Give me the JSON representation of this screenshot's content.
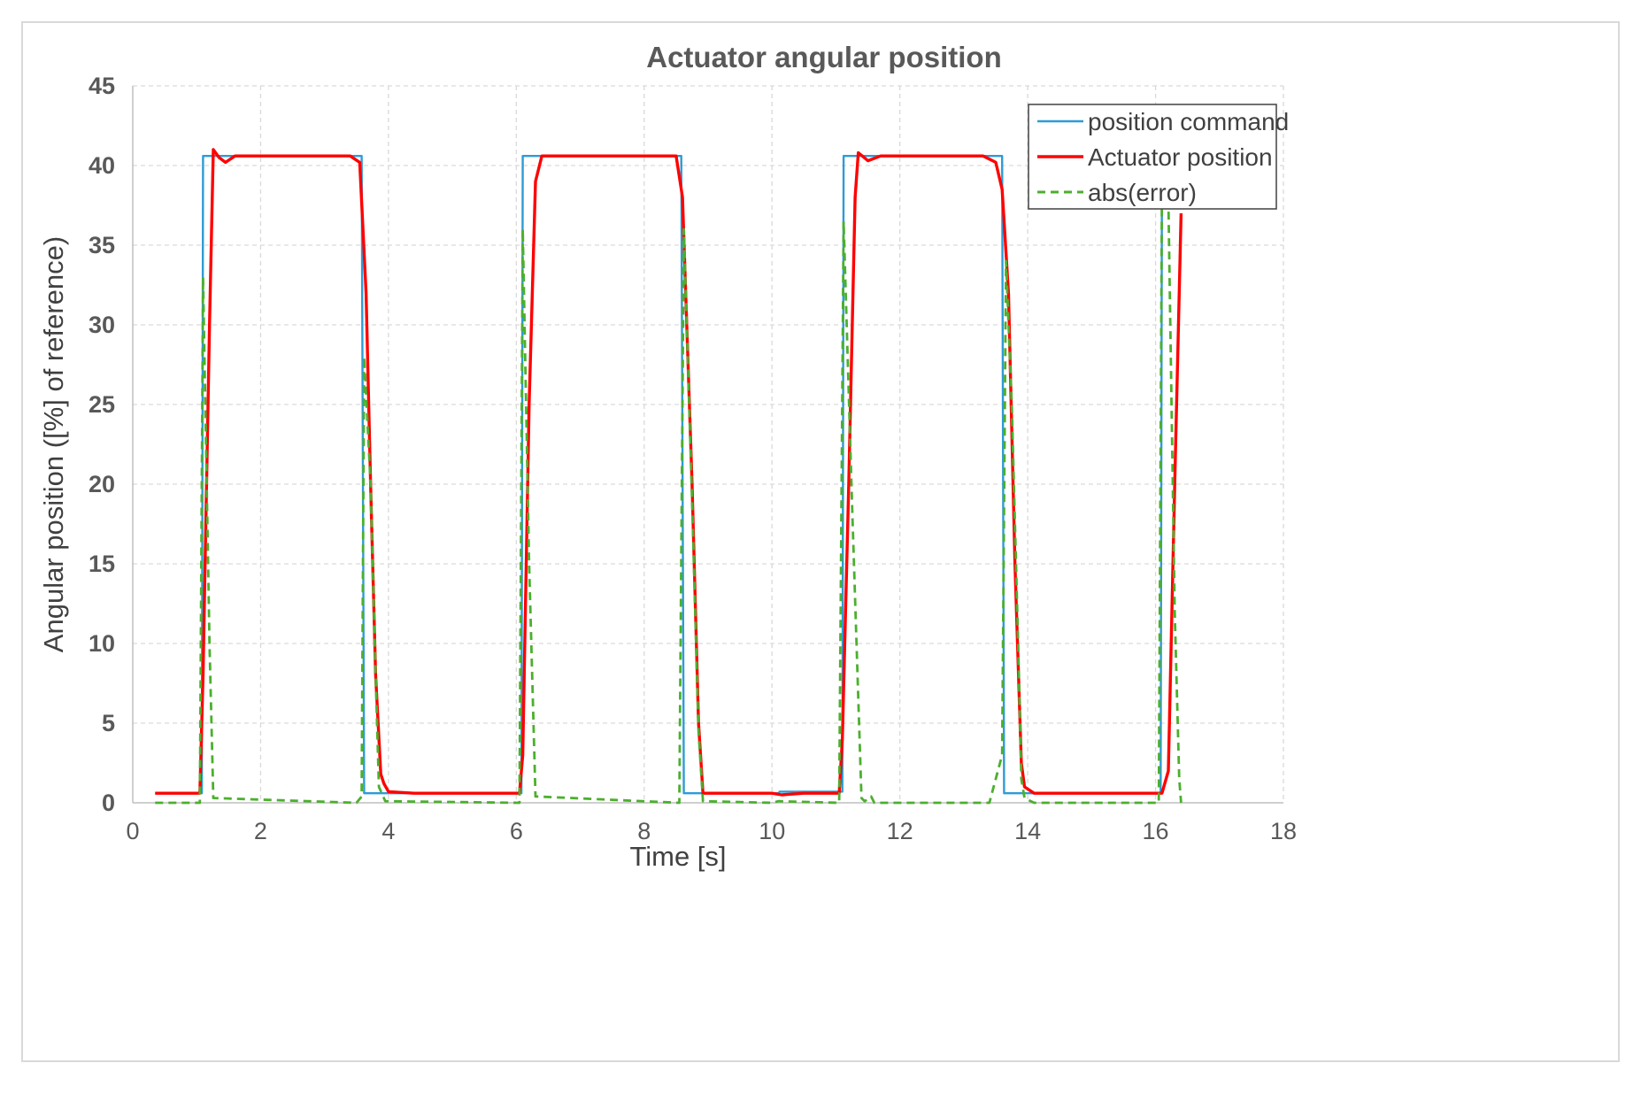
{
  "chart_data": {
    "type": "line",
    "title": "Actuator angular position",
    "xlabel": "Time [s]",
    "ylabel": "Angular position ([%] of reference)",
    "xlim": [
      0,
      18
    ],
    "ylim": [
      0,
      45
    ],
    "x_ticks": [
      "0",
      "2",
      "4",
      "6",
      "8",
      "10",
      "12",
      "14",
      "16",
      "18"
    ],
    "y_ticks": [
      "0",
      "5",
      "10",
      "15",
      "20",
      "25",
      "30",
      "35",
      "40",
      "45"
    ],
    "grid": true,
    "legend_position": "top-right",
    "series": [
      {
        "name": "position command",
        "color": "#2e9bd6",
        "style": "solid",
        "points": [
          [
            0.35,
            0.6
          ],
          [
            1.08,
            0.6
          ],
          [
            1.1,
            40.6
          ],
          [
            3.58,
            40.6
          ],
          [
            3.62,
            0.6
          ],
          [
            4.8,
            0.6
          ],
          [
            6.08,
            0.6
          ],
          [
            6.1,
            40.6
          ],
          [
            8.58,
            40.6
          ],
          [
            8.62,
            0.6
          ],
          [
            9.1,
            0.6
          ],
          [
            10.1,
            0.6
          ],
          [
            10.12,
            0.7
          ],
          [
            11.1,
            0.7
          ],
          [
            11.12,
            40.6
          ],
          [
            13.6,
            40.6
          ],
          [
            13.63,
            0.6
          ],
          [
            16.08,
            0.6
          ],
          [
            16.1,
            40.6
          ],
          [
            16.4,
            40.6
          ]
        ]
      },
      {
        "name": "Actuator position",
        "color": "#ff0000",
        "style": "solid",
        "points": [
          [
            0.35,
            0.6
          ],
          [
            1.05,
            0.6
          ],
          [
            1.1,
            8
          ],
          [
            1.2,
            30
          ],
          [
            1.26,
            41
          ],
          [
            1.35,
            40.5
          ],
          [
            1.45,
            40.2
          ],
          [
            1.6,
            40.6
          ],
          [
            2.5,
            40.6
          ],
          [
            3.4,
            40.6
          ],
          [
            3.55,
            40.2
          ],
          [
            3.65,
            32
          ],
          [
            3.72,
            20
          ],
          [
            3.8,
            8
          ],
          [
            3.88,
            1.8
          ],
          [
            3.93,
            1.2
          ],
          [
            4.0,
            0.7
          ],
          [
            4.4,
            0.6
          ],
          [
            6.05,
            0.6
          ],
          [
            6.1,
            3
          ],
          [
            6.2,
            25
          ],
          [
            6.3,
            39
          ],
          [
            6.4,
            40.6
          ],
          [
            8.5,
            40.6
          ],
          [
            8.6,
            38
          ],
          [
            8.75,
            20
          ],
          [
            8.85,
            5
          ],
          [
            8.92,
            0.6
          ],
          [
            10.0,
            0.6
          ],
          [
            10.15,
            0.5
          ],
          [
            10.5,
            0.6
          ],
          [
            11.05,
            0.6
          ],
          [
            11.1,
            4
          ],
          [
            11.2,
            20
          ],
          [
            11.3,
            38
          ],
          [
            11.35,
            40.8
          ],
          [
            11.5,
            40.3
          ],
          [
            11.7,
            40.6
          ],
          [
            12.5,
            40.6
          ],
          [
            13.3,
            40.6
          ],
          [
            13.5,
            40.2
          ],
          [
            13.6,
            38.5
          ],
          [
            13.7,
            32
          ],
          [
            13.8,
            15
          ],
          [
            13.9,
            2.5
          ],
          [
            13.95,
            1.0
          ],
          [
            14.1,
            0.6
          ],
          [
            16.05,
            0.6
          ],
          [
            16.1,
            0.6
          ],
          [
            16.2,
            2
          ],
          [
            16.3,
            20
          ],
          [
            16.4,
            37
          ]
        ]
      },
      {
        "name": "abs(error)",
        "color": "#4caf2e",
        "style": "dashed",
        "points": [
          [
            0.35,
            0.0
          ],
          [
            1.05,
            0.0
          ],
          [
            1.1,
            33
          ],
          [
            1.2,
            10
          ],
          [
            1.26,
            0.3
          ],
          [
            3.5,
            0.0
          ],
          [
            3.58,
            0.4
          ],
          [
            3.62,
            28
          ],
          [
            3.72,
            20
          ],
          [
            3.8,
            8
          ],
          [
            3.85,
            1.0
          ],
          [
            3.95,
            0.1
          ],
          [
            6.05,
            0.0
          ],
          [
            6.1,
            36
          ],
          [
            6.2,
            15
          ],
          [
            6.3,
            0.4
          ],
          [
            8.55,
            0.0
          ],
          [
            8.62,
            36
          ],
          [
            8.75,
            19
          ],
          [
            8.85,
            4.5
          ],
          [
            8.92,
            0.1
          ],
          [
            10.0,
            0.0
          ],
          [
            10.1,
            0.1
          ],
          [
            11.05,
            0.0
          ],
          [
            11.12,
            36.5
          ],
          [
            11.25,
            19
          ],
          [
            11.4,
            0.3
          ],
          [
            11.45,
            0.1
          ],
          [
            11.55,
            0.4
          ],
          [
            11.6,
            0.0
          ],
          [
            13.4,
            0.0
          ],
          [
            13.5,
            1.5
          ],
          [
            13.6,
            3
          ],
          [
            13.66,
            34
          ],
          [
            13.75,
            25
          ],
          [
            13.85,
            10
          ],
          [
            13.9,
            1.5
          ],
          [
            13.95,
            0.3
          ],
          [
            14.1,
            0.0
          ],
          [
            16.05,
            0.0
          ],
          [
            16.1,
            39
          ],
          [
            16.2,
            38
          ],
          [
            16.3,
            12
          ],
          [
            16.37,
            1.5
          ],
          [
            16.4,
            0.0
          ]
        ]
      }
    ]
  }
}
